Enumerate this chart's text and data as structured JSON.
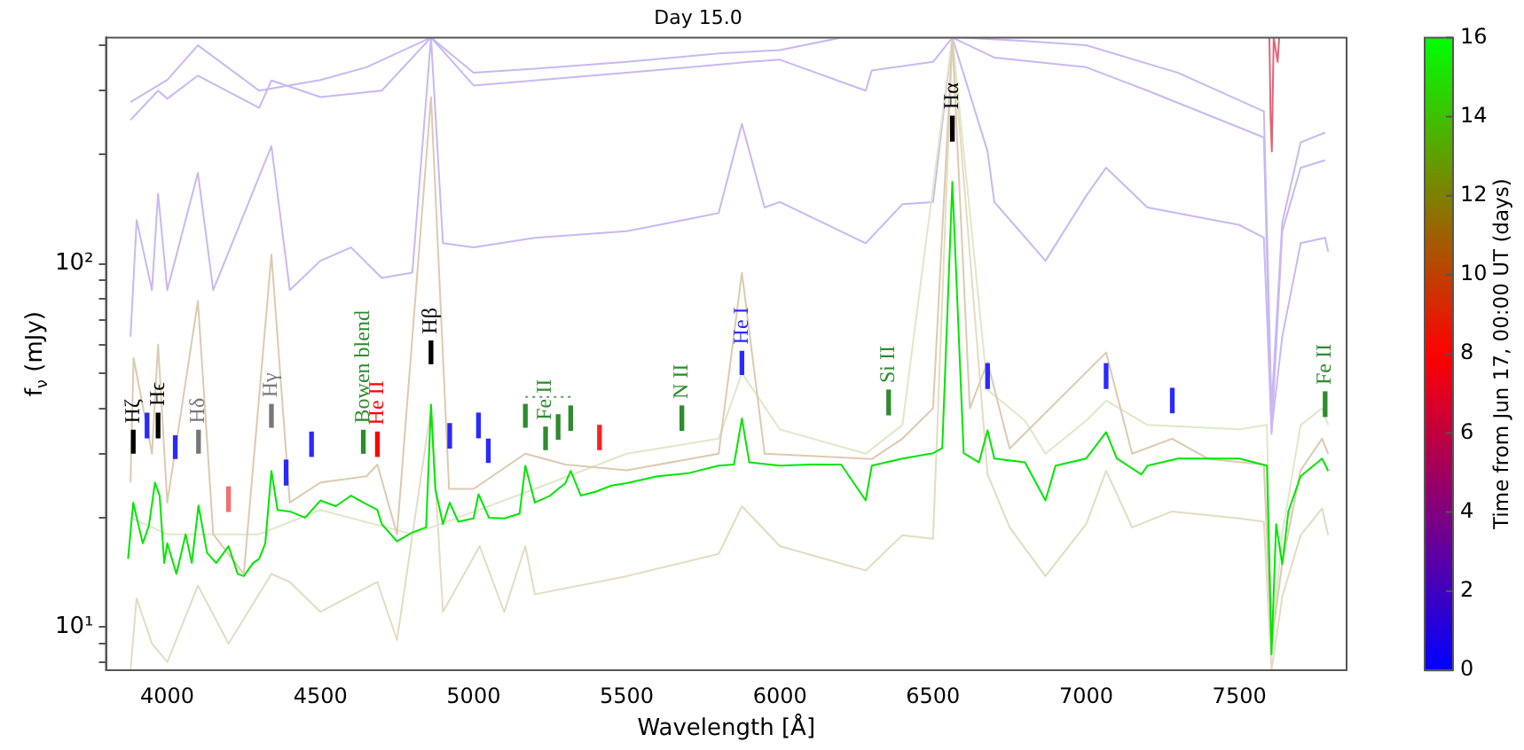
{
  "chart_data": {
    "type": "line",
    "title": "Day 15.0",
    "xlabel": "Wavelength [Å]",
    "ylabel": "f$_{ν}$ (mJy)",
    "clabel": "Time from Jun 17, 00:00 UT (days)",
    "clim": [
      0,
      16
    ],
    "cticks": [
      0,
      2,
      4,
      6,
      8,
      10,
      12,
      14,
      16
    ],
    "xlim": [
      3800,
      7850
    ],
    "xticks": [
      4000,
      4500,
      5000,
      5500,
      6000,
      6500,
      7000,
      7500
    ],
    "ylim": [
      7.6,
      420
    ],
    "yticks": [
      {
        "value": 8,
        "label": null
      },
      {
        "value": 9,
        "label": null
      },
      {
        "value": 10,
        "label": "10¹"
      },
      {
        "value": 20,
        "label": null
      },
      {
        "value": 30,
        "label": null
      },
      {
        "value": 40,
        "label": null
      },
      {
        "value": 50,
        "label": null
      },
      {
        "value": 60,
        "label": null
      },
      {
        "value": 70,
        "label": null
      },
      {
        "value": 80,
        "label": null
      },
      {
        "value": 90,
        "label": null
      },
      {
        "value": 100,
        "label": "10²"
      },
      {
        "value": 200,
        "label": null
      },
      {
        "value": 300,
        "label": null
      },
      {
        "value": 400,
        "label": null
      }
    ],
    "log": "y",
    "grid": false,
    "legend": false,
    "marker": "none",
    "line_style": "solid",
    "series": [
      {
        "type": "line",
        "color": "#c9b8f2",
        "x": [
          3880,
          4000,
          4100,
          4300,
          4500,
          4650,
          4861,
          5000,
          5200,
          5500,
          5800,
          6000,
          6200,
          6600,
          6800,
          7000,
          7300,
          7580,
          7605,
          7640,
          7700,
          7780
        ],
        "values": [
          279,
          321,
          400,
          300,
          321,
          348,
          420,
          336,
          345,
          360,
          380,
          388,
          420,
          420,
          411,
          400,
          336,
          263,
          40,
          130,
          216,
          230
        ]
      },
      {
        "type": "line",
        "color": "#c9b8f2",
        "x": [
          3880,
          3970,
          4000,
          4100,
          4300,
          4340,
          4500,
          4700,
          4861,
          5000,
          5500,
          5900,
          6000,
          6280,
          6300,
          6500,
          6563,
          6700,
          7000,
          7200,
          7580,
          7605,
          7640,
          7700,
          7780
        ],
        "values": [
          249,
          300,
          285,
          330,
          269,
          320,
          288,
          300,
          420,
          310,
          336,
          360,
          365,
          300,
          341,
          360,
          420,
          370,
          348,
          300,
          223,
          34,
          123,
          184,
          193
        ]
      },
      {
        "type": "line",
        "color": "#c9b8f2",
        "x": [
          3880,
          3900,
          3950,
          3970,
          4000,
          4100,
          4150,
          4340,
          4400,
          4500,
          4600,
          4700,
          4800,
          4861,
          4900,
          5000,
          5200,
          5500,
          5800,
          5876,
          5950,
          6000,
          6280,
          6400,
          6500,
          6563,
          6678,
          6700,
          6867,
          7000,
          7065,
          7200,
          7500,
          7580,
          7605,
          7640,
          7700,
          7780,
          7790
        ],
        "values": [
          63,
          132,
          84.7,
          156,
          84.7,
          178,
          84.7,
          211,
          84.7,
          102,
          111,
          91.5,
          94.6,
          420,
          114,
          111,
          118,
          123,
          138,
          243,
          143,
          148,
          114,
          146,
          148,
          420,
          204,
          148,
          102,
          154,
          184,
          143,
          128,
          118,
          34.8,
          63,
          114,
          118,
          108
        ]
      },
      {
        "type": "line",
        "color": "#e3dcc2",
        "x": [
          3880,
          3900,
          3950,
          4000,
          4100,
          4200,
          4340,
          4400,
          4500,
          4686,
          4750,
          4861,
          4900,
          5020,
          5100,
          5169,
          5200,
          5500,
          5800,
          5876,
          6000,
          6280,
          6400,
          6500,
          6563,
          6678,
          6750,
          6867,
          7000,
          7065,
          7150,
          7280,
          7500,
          7580,
          7605,
          7640,
          7700,
          7770,
          7790
        ],
        "values": [
          7.6,
          12,
          9,
          8,
          13,
          9,
          14,
          13.3,
          11,
          13.3,
          9.2,
          40,
          11,
          16.7,
          11,
          16.7,
          12.3,
          13.8,
          15.9,
          21.5,
          16.7,
          14.3,
          17.9,
          17.5,
          420,
          26.3,
          18.8,
          13.8,
          19.2,
          26.9,
          18.8,
          20.8,
          19.9,
          19.5,
          7.6,
          12.1,
          17.9,
          21.2,
          17.9
        ]
      },
      {
        "type": "line",
        "color": "#dfe8c8",
        "x": [
          3880,
          4000,
          4300,
          4500,
          4800,
          4950,
          5200,
          5500,
          5800,
          5876,
          6000,
          6280,
          6400,
          6563,
          6678,
          6800,
          6867,
          7000,
          7065,
          7200,
          7500,
          7590,
          7605,
          7640,
          7700,
          7770,
          7790
        ],
        "values": [
          20,
          18,
          18,
          21,
          18,
          20,
          24,
          30,
          33,
          50,
          35,
          30,
          36,
          420,
          45,
          37,
          30,
          37,
          42,
          36,
          35,
          36,
          9,
          18,
          36,
          40,
          36
        ]
      },
      {
        "type": "line",
        "color": "#dccab0",
        "x": [
          3880,
          3890,
          3950,
          3970,
          4000,
          4100,
          4150,
          4250,
          4340,
          4400,
          4500,
          4650,
          4686,
          4750,
          4861,
          4920,
          5000,
          5169,
          5300,
          5500,
          5800,
          5876,
          5950,
          6300,
          6400,
          6500,
          6563,
          6620,
          6678,
          6750,
          7065,
          7150,
          7280,
          7400,
          7580,
          7605,
          7640,
          7700,
          7770,
          7790
        ],
        "values": [
          25,
          55,
          30,
          60,
          22,
          79,
          18,
          14,
          106,
          22,
          25,
          26,
          28,
          18,
          288,
          24,
          24,
          30,
          28,
          27,
          30,
          94.6,
          30,
          29,
          33,
          40,
          420,
          40,
          53.6,
          31,
          57,
          30,
          33,
          29,
          28,
          9,
          15,
          27,
          33,
          30
        ]
      },
      {
        "type": "line",
        "color": "#e06478",
        "x": [
          7598,
          7602,
          7606,
          7612,
          7625,
          7630
        ],
        "values": [
          420,
          250,
          204,
          420,
          360,
          420
        ]
      },
      {
        "color": "#00e600",
        "x": [
          3872,
          3889,
          3900,
          3920,
          3940,
          3960,
          3975,
          3990,
          4000,
          4030,
          4060,
          4080,
          4102,
          4130,
          4160,
          4200,
          4230,
          4250,
          4280,
          4300,
          4320,
          4340,
          4360,
          4400,
          4450,
          4500,
          4550,
          4600,
          4640,
          4686,
          4700,
          4750,
          4800,
          4845,
          4861,
          4875,
          4900,
          4922,
          4950,
          5000,
          5016,
          5050,
          5100,
          5150,
          5169,
          5200,
          5250,
          5276,
          5300,
          5317,
          5350,
          5400,
          5450,
          5500,
          5600,
          5700,
          5800,
          5850,
          5876,
          5900,
          6000,
          6100,
          6200,
          6280,
          6300,
          6400,
          6500,
          6530,
          6563,
          6600,
          6650,
          6678,
          6700,
          6800,
          6867,
          6900,
          7000,
          7065,
          7100,
          7180,
          7200,
          7300,
          7400,
          7500,
          7590,
          7605,
          7620,
          7640,
          7660,
          7700,
          7770,
          7790
        ],
        "values": [
          15.4,
          22,
          20,
          17,
          19,
          25,
          23,
          15,
          17,
          14,
          18,
          15,
          21.6,
          16,
          15,
          16.7,
          14,
          13.8,
          15,
          15.4,
          17,
          26.9,
          21,
          20.8,
          20,
          22.3,
          21.5,
          23,
          22,
          21,
          19.2,
          17.2,
          18.2,
          18.8,
          41,
          24,
          19.2,
          22,
          19.5,
          19.9,
          23.2,
          20,
          19.9,
          20.5,
          27.8,
          22,
          23,
          24,
          24.9,
          26.9,
          23,
          23.6,
          24.5,
          24.9,
          26,
          26.5,
          27.8,
          28,
          37.5,
          28.4,
          27.8,
          28,
          28,
          22.3,
          27.8,
          29.1,
          30.1,
          31.1,
          168,
          30.1,
          28.4,
          34.8,
          29.1,
          28.4,
          22.3,
          27.8,
          29.1,
          34.4,
          29.1,
          26.3,
          27.8,
          29.1,
          29.1,
          29.1,
          27.8,
          8.4,
          19.2,
          14.9,
          20.8,
          26,
          29.1,
          26.9
        ]
      },
      {
        "type": "line",
        "color": "#5aa05a",
        "line_style": "dotted",
        "x": [
          5169,
          5317
        ],
        "values": [
          43,
          43
        ]
      },
      {
        "type": "bar",
        "x": [
          3889,
          3970,
          4102,
          4340,
          4861,
          6563
        ],
        "base": [
          30.1,
          33.2,
          30.1,
          35.5,
          53.1,
          218
        ],
        "values": [
          4.7,
          5.6,
          4.7,
          5.5,
          8.2,
          37
        ],
        "colors": [
          "#000000",
          "#000000",
          "#777777",
          "#777777",
          "#000000",
          "#000000"
        ],
        "value_labels": [
          "Hζ",
          "Hϵ",
          "Hδ",
          "Hγ",
          "Hβ",
          "Hα"
        ]
      },
      {
        "type": "bar",
        "color": "#2a2aff",
        "x": [
          3934,
          4026,
          4388,
          4471,
          4922,
          5016,
          5048,
          5876,
          6678,
          7065,
          7281
        ],
        "base": [
          33.2,
          29.1,
          24.6,
          29.5,
          31.1,
          33.2,
          28.4,
          49.6,
          45.4,
          45.4,
          38.9
        ],
        "values": [
          5.6,
          4.5,
          4.2,
          4.9,
          5.2,
          5.6,
          4.5,
          7.8,
          7.7,
          7.7,
          6.5
        ],
        "value_labels": [
          null,
          null,
          null,
          null,
          null,
          null,
          null,
          "He I",
          null,
          null,
          null
        ]
      },
      {
        "type": "bar",
        "x": [
          4200,
          4686,
          5411
        ],
        "base": [
          20.8,
          29.5,
          30.8
        ],
        "values": [
          3.5,
          4.9,
          5.1
        ],
        "colors": [
          "#f07070",
          "#ff0000",
          "#ff2020"
        ],
        "value_labels": [
          null,
          "He II",
          null
        ]
      },
      {
        "type": "bar",
        "color": "#2e8b2e",
        "x": [
          4640,
          5169,
          5235,
          5276,
          5317,
          5680,
          6355,
          7780
        ],
        "base": [
          30.1,
          35.5,
          30.8,
          32.9,
          34.8,
          34.8,
          38.4,
          38
        ],
        "values": [
          4.7,
          5.5,
          4.7,
          5.5,
          5.8,
          5.8,
          6.5,
          6.4
        ],
        "value_labels": [
          "Bowen blend",
          null,
          "Fe II",
          null,
          null,
          "N II",
          "Si II",
          "Fe II"
        ]
      }
    ]
  }
}
